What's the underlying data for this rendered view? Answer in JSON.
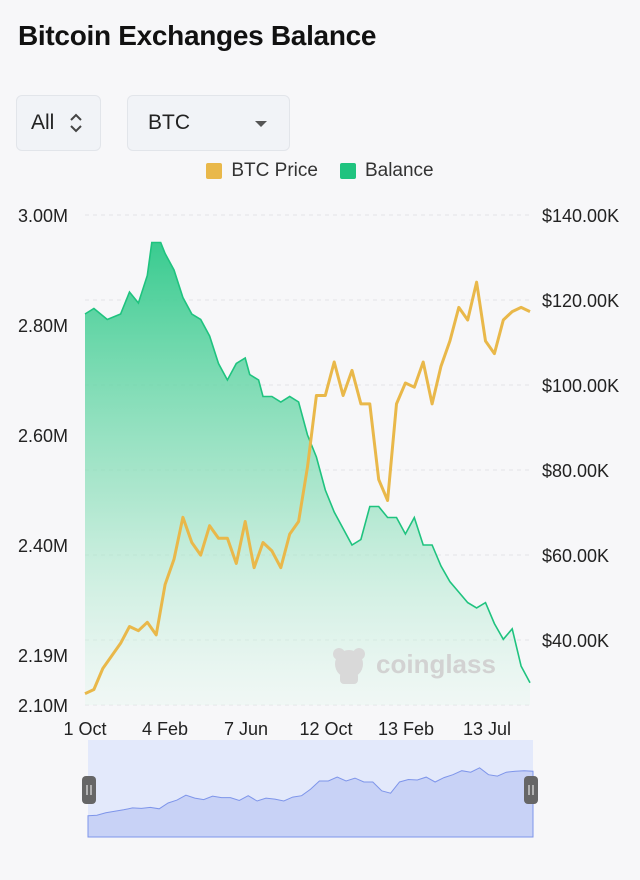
{
  "page": {
    "title": "Bitcoin Exchanges Balance"
  },
  "controls": {
    "range_select": {
      "value": "All"
    },
    "coin_select": {
      "value": "BTC"
    }
  },
  "legend": [
    {
      "label": "BTC Price",
      "color": "#e9b84a"
    },
    {
      "label": "Balance",
      "color": "#1fc37f"
    }
  ],
  "watermark": {
    "text": "coinglass"
  },
  "chart_data": {
    "type": "line",
    "x_ticks": [
      "1 Oct",
      "4 Feb",
      "7 Jun",
      "12 Oct",
      "13 Feb",
      "13 Jul"
    ],
    "y_left": {
      "ticks": [
        "3.00M",
        "2.80M",
        "2.60M",
        "2.40M",
        "2.19M",
        "2.10M"
      ],
      "tick_values": [
        3.0,
        2.8,
        2.6,
        2.4,
        2.19,
        2.1
      ],
      "range": [
        2.1,
        3.0
      ],
      "unit": "M BTC"
    },
    "y_right": {
      "ticks": [
        "$140.00K",
        "$120.00K",
        "$100.00K",
        "$80.00K",
        "$60.00K",
        "$40.00K"
      ],
      "tick_values": [
        140,
        120,
        100,
        80,
        60,
        40
      ],
      "range": [
        23.3,
        140
      ],
      "unit": "K USD"
    },
    "grid": true,
    "legend_position": "top",
    "series": [
      {
        "name": "Balance",
        "axis": "left",
        "color": "#1fc37f",
        "type": "area",
        "x": [
          0,
          0.02,
          0.05,
          0.08,
          0.1,
          0.12,
          0.14,
          0.15,
          0.17,
          0.18,
          0.2,
          0.22,
          0.24,
          0.26,
          0.28,
          0.3,
          0.32,
          0.34,
          0.36,
          0.37,
          0.39,
          0.4,
          0.42,
          0.44,
          0.46,
          0.48,
          0.5,
          0.52,
          0.54,
          0.56,
          0.58,
          0.6,
          0.62,
          0.64,
          0.66,
          0.68,
          0.7,
          0.72,
          0.74,
          0.76,
          0.78,
          0.8,
          0.82,
          0.84,
          0.86,
          0.88,
          0.9,
          0.92,
          0.94,
          0.96,
          0.98,
          1.0
        ],
        "values": [
          2.82,
          2.83,
          2.81,
          2.82,
          2.86,
          2.84,
          2.89,
          2.95,
          2.95,
          2.93,
          2.9,
          2.85,
          2.82,
          2.81,
          2.78,
          2.73,
          2.7,
          2.73,
          2.74,
          2.71,
          2.7,
          2.67,
          2.67,
          2.66,
          2.67,
          2.66,
          2.6,
          2.56,
          2.5,
          2.46,
          2.43,
          2.4,
          2.41,
          2.47,
          2.47,
          2.45,
          2.45,
          2.42,
          2.45,
          2.4,
          2.4,
          2.36,
          2.33,
          2.31,
          2.29,
          2.28,
          2.29,
          2.25,
          2.22,
          2.24,
          2.17,
          2.14
        ]
      },
      {
        "name": "BTC Price",
        "axis": "right",
        "color": "#e9b84a",
        "type": "line",
        "x": [
          0,
          0.02,
          0.04,
          0.06,
          0.08,
          0.1,
          0.12,
          0.14,
          0.16,
          0.18,
          0.2,
          0.22,
          0.24,
          0.26,
          0.28,
          0.3,
          0.32,
          0.34,
          0.36,
          0.38,
          0.4,
          0.42,
          0.44,
          0.46,
          0.48,
          0.5,
          0.52,
          0.54,
          0.56,
          0.58,
          0.6,
          0.62,
          0.64,
          0.66,
          0.68,
          0.7,
          0.72,
          0.74,
          0.76,
          0.78,
          0.8,
          0.82,
          0.84,
          0.86,
          0.88,
          0.9,
          0.92,
          0.94,
          0.96,
          0.98,
          1.0
        ],
        "values": [
          26,
          27,
          32,
          35,
          38,
          42,
          41,
          43,
          40,
          52,
          58,
          68,
          62,
          59,
          66,
          63,
          63,
          57,
          67,
          56,
          62,
          60,
          56,
          64,
          67,
          80,
          97,
          97,
          105,
          97,
          103,
          95,
          95,
          77,
          72,
          95,
          100,
          99,
          105,
          95,
          104,
          110,
          118,
          115,
          124,
          110,
          107,
          115,
          117,
          118,
          117
        ]
      }
    ]
  }
}
